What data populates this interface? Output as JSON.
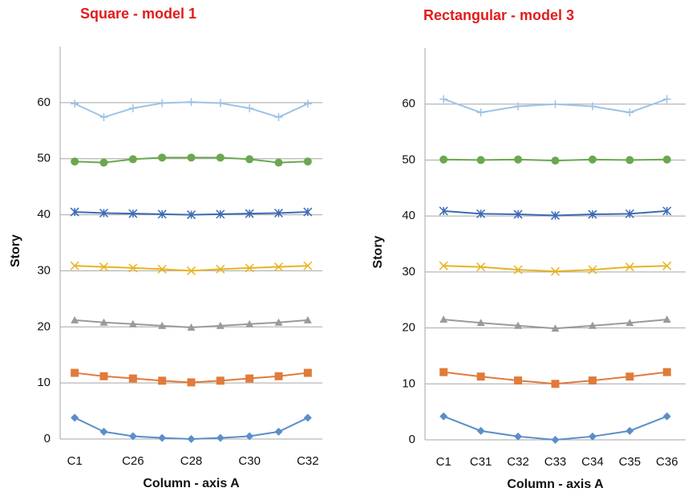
{
  "chart_data": [
    {
      "type": "line",
      "title": "Square  - model 1",
      "xlabel": "Column - axis A",
      "ylabel": "Story",
      "categories": [
        "C1",
        null,
        "C26",
        null,
        "C28",
        null,
        "C30",
        null,
        "C32"
      ],
      "ylim": [
        0,
        70
      ],
      "yticks": [
        0,
        10,
        20,
        30,
        40,
        50,
        60
      ],
      "grid": true,
      "series": [
        {
          "color": "#5b8ec9",
          "marker": "diamond",
          "values": [
            3.8,
            1.3,
            0.5,
            0.2,
            0,
            0.2,
            0.5,
            1.3,
            3.8
          ]
        },
        {
          "color": "#e07b39",
          "marker": "square",
          "values": [
            11.8,
            11.2,
            10.8,
            10.4,
            10.1,
            10.4,
            10.8,
            11.2,
            11.8
          ]
        },
        {
          "color": "#9a9a9a",
          "marker": "triangle",
          "values": [
            21.2,
            20.8,
            20.5,
            20.2,
            19.9,
            20.2,
            20.5,
            20.8,
            21.2
          ]
        },
        {
          "color": "#e8b422",
          "marker": "x",
          "values": [
            30.9,
            30.7,
            30.5,
            30.3,
            30.0,
            30.3,
            30.5,
            30.7,
            30.9
          ]
        },
        {
          "color": "#3c6bb5",
          "marker": "star",
          "values": [
            40.5,
            40.3,
            40.2,
            40.1,
            40.0,
            40.1,
            40.2,
            40.3,
            40.5
          ]
        },
        {
          "color": "#6aa84f",
          "marker": "circle",
          "values": [
            49.5,
            49.3,
            49.9,
            50.2,
            50.2,
            50.2,
            49.9,
            49.3,
            49.5
          ]
        },
        {
          "color": "#9dc3e6",
          "marker": "plus",
          "values": [
            59.8,
            57.4,
            59.0,
            59.9,
            60.1,
            59.9,
            59.0,
            57.4,
            59.8
          ]
        }
      ]
    },
    {
      "type": "line",
      "title": "Rectangular  - model 3",
      "xlabel": "Column - axis A",
      "ylabel": "Story",
      "categories": [
        "C1",
        "C31",
        "C32",
        "C33",
        "C34",
        "C35",
        "C36"
      ],
      "ylim": [
        0,
        70
      ],
      "yticks": [
        0,
        10,
        20,
        30,
        40,
        50,
        60
      ],
      "grid": true,
      "series": [
        {
          "color": "#5b8ec9",
          "marker": "diamond",
          "values": [
            4.2,
            1.6,
            0.6,
            0,
            0.6,
            1.6,
            4.2
          ]
        },
        {
          "color": "#e07b39",
          "marker": "square",
          "values": [
            12.1,
            11.3,
            10.6,
            10.0,
            10.6,
            11.3,
            12.1
          ]
        },
        {
          "color": "#9a9a9a",
          "marker": "triangle",
          "values": [
            21.5,
            20.9,
            20.4,
            19.9,
            20.4,
            20.9,
            21.5
          ]
        },
        {
          "color": "#e8b422",
          "marker": "x",
          "values": [
            31.1,
            30.9,
            30.4,
            30.1,
            30.4,
            30.9,
            31.1
          ]
        },
        {
          "color": "#3c6bb5",
          "marker": "star",
          "values": [
            40.9,
            40.4,
            40.3,
            40.1,
            40.3,
            40.4,
            40.9
          ]
        },
        {
          "color": "#6aa84f",
          "marker": "circle",
          "values": [
            50.1,
            50.0,
            50.1,
            49.9,
            50.1,
            50.0,
            50.1
          ]
        },
        {
          "color": "#9dc3e6",
          "marker": "plus",
          "values": [
            60.9,
            58.5,
            59.6,
            60.0,
            59.6,
            58.5,
            60.9
          ]
        }
      ]
    }
  ]
}
